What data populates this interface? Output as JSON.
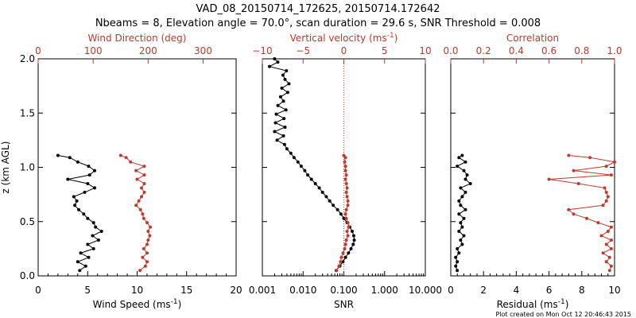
{
  "header": {
    "title": "VAD_08_20150714_172625, 20150714.172642",
    "subtitle": "Nbeams = 8, Elevation angle = 70.0°, scan duration = 29.6 s, SNR Threshold = 0.008"
  },
  "footer": {
    "created": "Plot created on Mon Oct 12 20:46:43 2015"
  },
  "colors": {
    "black": "#000000",
    "red": "#c0392b"
  },
  "chart_data": [
    {
      "type": "line",
      "panel": "wind",
      "xlabel_bottom": "Wind Speed (ms",
      "xlabel_bottom_sup": "-1",
      "xlabel_bottom_tail": ")",
      "xlabel_top": "Wind Direction (deg)",
      "ylabel": "z (km AGL)",
      "xlim_bottom": [
        0,
        20
      ],
      "xticks_bottom": [
        "0",
        "5",
        "10",
        "15",
        "20"
      ],
      "xlim_top": [
        0,
        360
      ],
      "xticks_top": [
        "0",
        "100",
        "200",
        "300"
      ],
      "ylim": [
        0,
        2
      ],
      "yticks": [
        "0.0",
        "0.5",
        "1.0",
        "1.5",
        "2.0"
      ],
      "series": [
        {
          "axis": "bottom",
          "color": "#000000",
          "z": [
            0.05,
            0.09,
            0.13,
            0.17,
            0.21,
            0.25,
            0.29,
            0.33,
            0.37,
            0.41,
            0.45,
            0.49,
            0.53,
            0.57,
            0.61,
            0.65,
            0.69,
            0.73,
            0.77,
            0.81,
            0.85,
            0.89,
            0.93,
            0.97,
            1.01,
            1.05,
            1.09,
            1.11
          ],
          "values": [
            4.2,
            4.8,
            4.0,
            5.1,
            4.3,
            5.6,
            5.0,
            6.1,
            5.5,
            6.4,
            5.8,
            5.6,
            5.0,
            4.6,
            4.1,
            3.7,
            3.9,
            3.6,
            4.7,
            5.7,
            5.0,
            3.0,
            5.2,
            5.7,
            5.1,
            4.0,
            3.2,
            2.0
          ]
        },
        {
          "axis": "top",
          "color": "#c0392b",
          "z": [
            0.05,
            0.09,
            0.13,
            0.17,
            0.21,
            0.25,
            0.29,
            0.33,
            0.37,
            0.41,
            0.45,
            0.49,
            0.53,
            0.57,
            0.61,
            0.65,
            0.69,
            0.73,
            0.77,
            0.81,
            0.85,
            0.89,
            0.93,
            0.97,
            1.01,
            1.05,
            1.09,
            1.11
          ],
          "values": [
            185,
            195,
            198,
            190,
            198,
            192,
            198,
            200,
            203,
            200,
            204,
            198,
            192,
            190,
            186,
            178,
            183,
            188,
            193,
            188,
            193,
            180,
            193,
            178,
            193,
            168,
            160,
            150
          ]
        }
      ]
    },
    {
      "type": "line",
      "panel": "snr",
      "xscale": "log",
      "xlabel_bottom": "SNR",
      "xlabel_top": "Vertical velocity (ms",
      "xlabel_top_sup": "-1",
      "xlabel_top_tail": ")",
      "xlim_bottom": [
        0.001,
        10
      ],
      "xticks_bottom": [
        "0.001",
        "0.010",
        "0.100",
        "1.000",
        "10.000"
      ],
      "xlim_top": [
        -10,
        10
      ],
      "xticks_top": [
        "−10",
        "−5",
        "0",
        "5",
        "10"
      ],
      "reference_line": {
        "axis": "top",
        "value": 0,
        "style": "dotted"
      },
      "ylim": [
        0,
        2
      ],
      "series": [
        {
          "axis": "bottom",
          "color": "#000000",
          "z": [
            0.05,
            0.09,
            0.13,
            0.17,
            0.21,
            0.25,
            0.29,
            0.33,
            0.37,
            0.41,
            0.45,
            0.49,
            0.53,
            0.57,
            0.61,
            0.65,
            0.69,
            0.73,
            0.77,
            0.81,
            0.85,
            0.89,
            0.93,
            0.97,
            1.01,
            1.05,
            1.09,
            1.13,
            1.17,
            1.21,
            1.25,
            1.29,
            1.33,
            1.37,
            1.41,
            1.45,
            1.49,
            1.53,
            1.57,
            1.61,
            1.65,
            1.69,
            1.73,
            1.77,
            1.81,
            1.85,
            1.89,
            1.93,
            1.97,
            2.0
          ],
          "values": [
            0.065,
            0.08,
            0.095,
            0.11,
            0.13,
            0.15,
            0.17,
            0.18,
            0.175,
            0.16,
            0.14,
            0.12,
            0.1,
            0.085,
            0.07,
            0.055,
            0.045,
            0.037,
            0.03,
            0.025,
            0.02,
            0.016,
            0.013,
            0.011,
            0.009,
            0.0075,
            0.006,
            0.005,
            0.004,
            0.0035,
            0.0023,
            0.0033,
            0.002,
            0.0036,
            0.0021,
            0.0034,
            0.0022,
            0.0038,
            0.0024,
            0.0033,
            0.0028,
            0.0042,
            0.003,
            0.0045,
            0.0036,
            0.0032,
            0.0039,
            0.0015,
            0.0024,
            0.002
          ]
        },
        {
          "axis": "top",
          "color": "#c0392b",
          "z": [
            0.05,
            0.09,
            0.13,
            0.17,
            0.21,
            0.25,
            0.29,
            0.33,
            0.37,
            0.41,
            0.45,
            0.49,
            0.53,
            0.57,
            0.61,
            0.65,
            0.69,
            0.73,
            0.77,
            0.81,
            0.85,
            0.89,
            0.93,
            0.97,
            1.01,
            1.05,
            1.09,
            1.11
          ],
          "values": [
            -0.9,
            -0.6,
            -0.4,
            -0.3,
            -0.1,
            0.1,
            0.2,
            0.3,
            0.5,
            0.4,
            0.6,
            0.5,
            0.3,
            0.2,
            0.3,
            0.5,
            0.5,
            0.4,
            0.3,
            0.4,
            0.3,
            0.2,
            0.3,
            0.2,
            0.2,
            0.1,
            0.2,
            0.0
          ]
        }
      ]
    },
    {
      "type": "line",
      "panel": "residual",
      "xlabel_bottom": "Residual (ms",
      "xlabel_bottom_sup": "-1",
      "xlabel_bottom_tail": ")",
      "xlabel_top": "Correlation",
      "xlim_bottom": [
        0,
        10
      ],
      "xticks_bottom": [
        "0",
        "2",
        "4",
        "6",
        "8",
        "10"
      ],
      "xlim_top": [
        0,
        1
      ],
      "xticks_top": [
        "0.0",
        "0.2",
        "0.4",
        "0.6",
        "0.8",
        "1.0"
      ],
      "ylim": [
        0,
        2
      ],
      "series": [
        {
          "axis": "bottom",
          "color": "#000000",
          "z": [
            0.05,
            0.09,
            0.13,
            0.17,
            0.21,
            0.25,
            0.29,
            0.33,
            0.37,
            0.41,
            0.45,
            0.49,
            0.53,
            0.57,
            0.61,
            0.65,
            0.69,
            0.73,
            0.77,
            0.81,
            0.85,
            0.89,
            0.93,
            0.97,
            1.01,
            1.05,
            1.09,
            1.11
          ],
          "values": [
            0.4,
            0.3,
            0.4,
            0.3,
            0.5,
            0.4,
            0.7,
            0.6,
            0.8,
            0.5,
            0.7,
            0.6,
            0.8,
            0.5,
            0.9,
            0.6,
            0.5,
            0.7,
            0.9,
            0.6,
            1.2,
            0.9,
            1.0,
            0.8,
            0.4,
            0.9,
            0.5,
            0.7
          ]
        },
        {
          "axis": "top",
          "color": "#c0392b",
          "z": [
            0.05,
            0.09,
            0.13,
            0.17,
            0.21,
            0.25,
            0.29,
            0.33,
            0.37,
            0.41,
            0.45,
            0.49,
            0.53,
            0.57,
            0.61,
            0.65,
            0.69,
            0.73,
            0.77,
            0.81,
            0.85,
            0.89,
            0.93,
            0.97,
            1.01,
            1.05,
            1.09,
            1.11
          ],
          "values": [
            0.97,
            0.98,
            0.95,
            0.97,
            0.93,
            0.98,
            0.95,
            0.98,
            0.92,
            0.96,
            0.98,
            0.9,
            0.83,
            0.75,
            0.72,
            0.93,
            0.95,
            0.96,
            0.95,
            0.94,
            0.78,
            0.6,
            0.98,
            0.75,
            0.95,
            1.0,
            0.85,
            0.72
          ]
        }
      ]
    }
  ]
}
